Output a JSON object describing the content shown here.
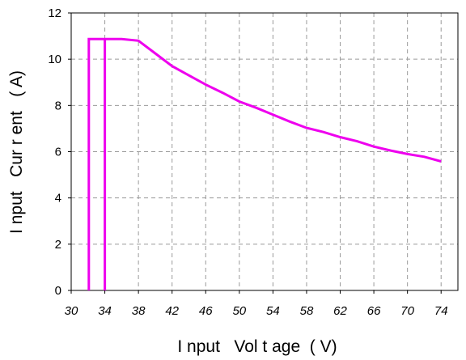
{
  "chart_data": {
    "type": "line",
    "title": "",
    "xlabel": "I nput   Vol t age  ( V)",
    "ylabel": "I nput   Cur r ent   ( A)",
    "xlim": [
      30,
      76
    ],
    "ylim": [
      0,
      12
    ],
    "x_ticks": [
      30,
      34,
      38,
      42,
      46,
      50,
      54,
      58,
      62,
      66,
      70,
      74
    ],
    "y_ticks": [
      0,
      2,
      4,
      6,
      8,
      10,
      12
    ],
    "grid": true,
    "grid_style": "dashed",
    "legend": "none",
    "series": [
      {
        "color": "#ee00ee",
        "points": [
          [
            32.1,
            0
          ],
          [
            32.1,
            10.87
          ],
          [
            34.0,
            10.87
          ],
          [
            34.0,
            0
          ],
          [
            34.0,
            10.87
          ],
          [
            36.0,
            10.87
          ],
          [
            38.0,
            10.8
          ],
          [
            40.0,
            10.25
          ],
          [
            42.0,
            9.7
          ],
          [
            44.0,
            9.3
          ],
          [
            46.0,
            8.9
          ],
          [
            48.0,
            8.55
          ],
          [
            50.0,
            8.17
          ],
          [
            52.0,
            7.9
          ],
          [
            54.0,
            7.6
          ],
          [
            56.0,
            7.3
          ],
          [
            58.0,
            7.03
          ],
          [
            60.0,
            6.85
          ],
          [
            62.0,
            6.63
          ],
          [
            64.0,
            6.45
          ],
          [
            66.0,
            6.22
          ],
          [
            68.0,
            6.05
          ],
          [
            70.0,
            5.9
          ],
          [
            72.0,
            5.78
          ],
          [
            74.0,
            5.58
          ]
        ]
      }
    ]
  }
}
